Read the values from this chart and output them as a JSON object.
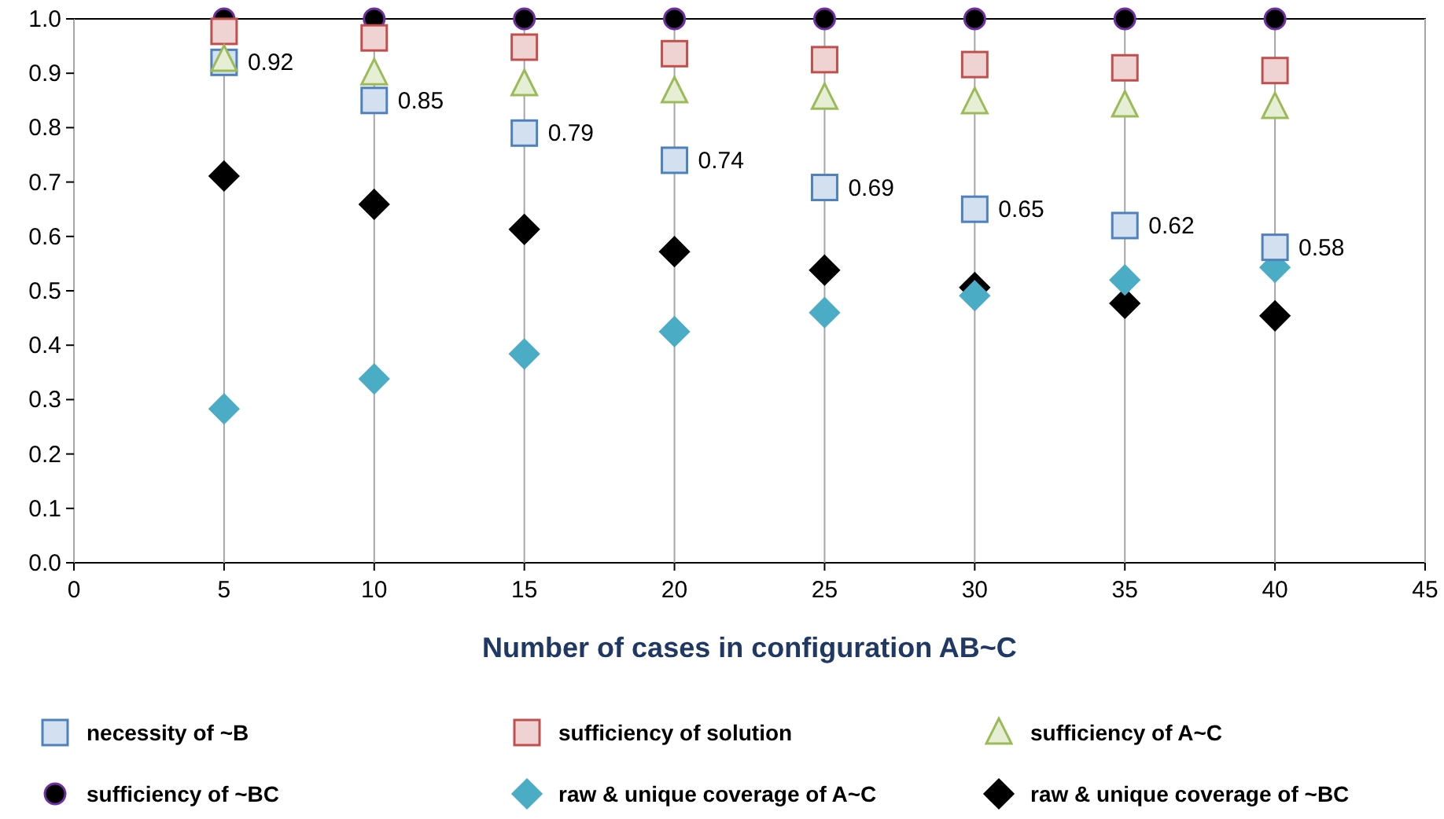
{
  "chart_data": {
    "type": "scatter",
    "xlabel": "Number of cases in configuration AB~C",
    "x": [
      5,
      10,
      15,
      20,
      25,
      30,
      35,
      40
    ],
    "xlim": [
      0,
      45
    ],
    "xticks": [
      0,
      5,
      10,
      15,
      20,
      25,
      30,
      35,
      40,
      45
    ],
    "ylim": [
      0,
      1
    ],
    "yticks": [
      {
        "value": 0,
        "label": "0.0"
      },
      0.1,
      0.2,
      0.3,
      0.4,
      0.5,
      0.6,
      0.7,
      0.8,
      0.9,
      {
        "value": 1,
        "label": "1.0"
      }
    ],
    "grid": "x",
    "legend": "bottom",
    "series": [
      {
        "name": "necessity of ~B",
        "color": "#4f81bd",
        "marker": "square",
        "values": [
          0.92,
          0.85,
          0.79,
          0.74,
          0.69,
          0.65,
          0.62,
          0.58
        ],
        "value_labels": [
          "0.92",
          "0.85",
          "0.79",
          "0.74",
          "0.69",
          "0.65",
          "0.62",
          "0.58"
        ]
      },
      {
        "name": "sufficiency of solution",
        "color": "#c0504d",
        "marker": "square",
        "values": [
          0.977,
          0.965,
          0.948,
          0.936,
          0.925,
          0.916,
          0.91,
          0.905
        ]
      },
      {
        "name": "sufficiency of A~C",
        "color": "#9bbb59",
        "marker": "triangle",
        "values": [
          0.925,
          0.9,
          0.88,
          0.867,
          0.855,
          0.847,
          0.841,
          0.838
        ]
      },
      {
        "name": "sufficiency of ~BC",
        "color": "#000000",
        "marker": "circle",
        "values": [
          1,
          1,
          1,
          1,
          1,
          1,
          1,
          1
        ]
      },
      {
        "name": "raw & unique coverage of A~C",
        "color": "#4bacc6",
        "marker": "diamond",
        "values": [
          0.283,
          0.338,
          0.384,
          0.425,
          0.46,
          0.491,
          0.52,
          0.543
        ]
      },
      {
        "name": "raw & unique coverage of ~BC",
        "color": "#000000",
        "marker": "diamond",
        "values": [
          0.711,
          0.659,
          0.613,
          0.572,
          0.538,
          0.506,
          0.477,
          0.454
        ]
      }
    ]
  }
}
